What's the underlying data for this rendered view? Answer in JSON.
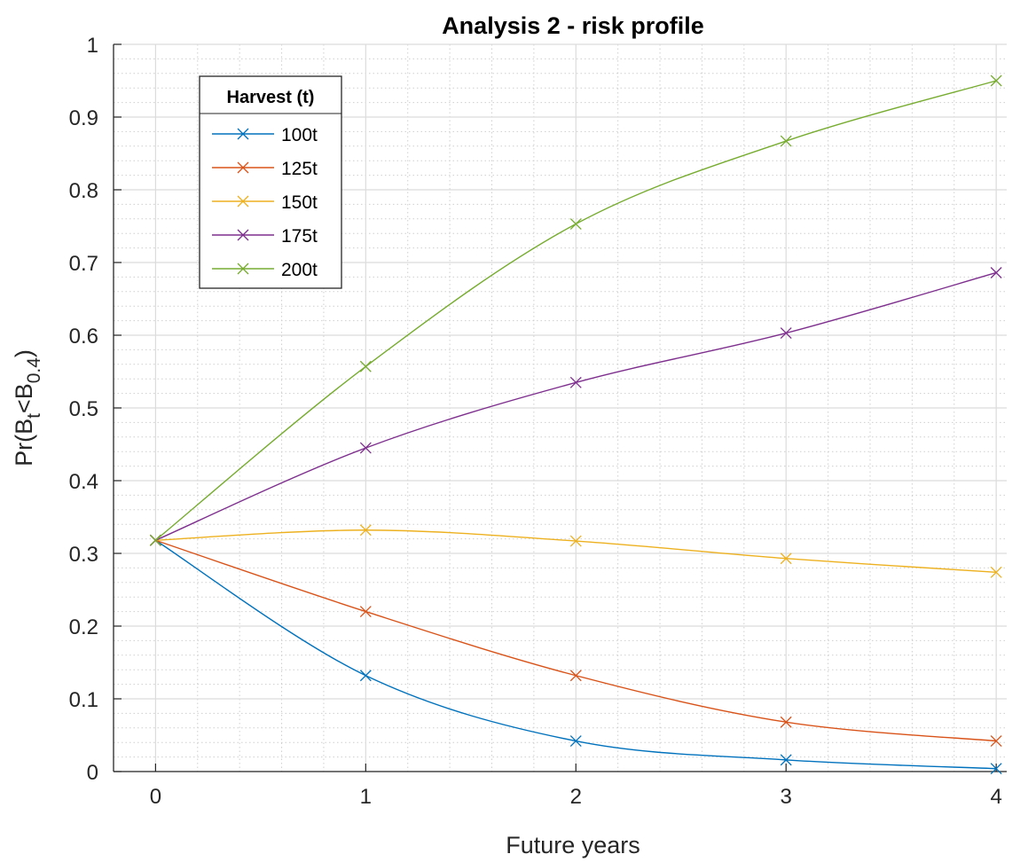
{
  "chart_data": {
    "type": "line",
    "title": "Analysis 2 - risk profile",
    "xlabel": "Future years",
    "ylabel": {
      "base": "Pr(B",
      "sub1": "t",
      "mid": "<B",
      "sub2": "0.4",
      "end": ")"
    },
    "x": [
      0,
      1,
      2,
      3,
      4
    ],
    "xlim": [
      -0.2,
      4.05
    ],
    "ylim": [
      0,
      1
    ],
    "xticks": [
      "0",
      "1",
      "2",
      "3",
      "4"
    ],
    "yticks": [
      "0",
      "0.1",
      "0.2",
      "0.3",
      "0.4",
      "0.5",
      "0.6",
      "0.7",
      "0.8",
      "0.9",
      "1"
    ],
    "grid": true,
    "minor_grid": true,
    "legend": {
      "title": "Harvest (t)",
      "placement": "top-left"
    },
    "series": [
      {
        "name": "100t",
        "color": "#0072BD",
        "values": [
          0.318,
          0.132,
          0.042,
          0.016,
          0.004
        ]
      },
      {
        "name": "125t",
        "color": "#D95319",
        "values": [
          0.318,
          0.22,
          0.132,
          0.068,
          0.042
        ]
      },
      {
        "name": "150t",
        "color": "#EDB120",
        "values": [
          0.318,
          0.332,
          0.317,
          0.293,
          0.274
        ]
      },
      {
        "name": "175t",
        "color": "#7E2F8E",
        "values": [
          0.318,
          0.445,
          0.535,
          0.603,
          0.686
        ]
      },
      {
        "name": "200t",
        "color": "#77AC30",
        "values": [
          0.318,
          0.557,
          0.753,
          0.867,
          0.95
        ]
      }
    ]
  }
}
